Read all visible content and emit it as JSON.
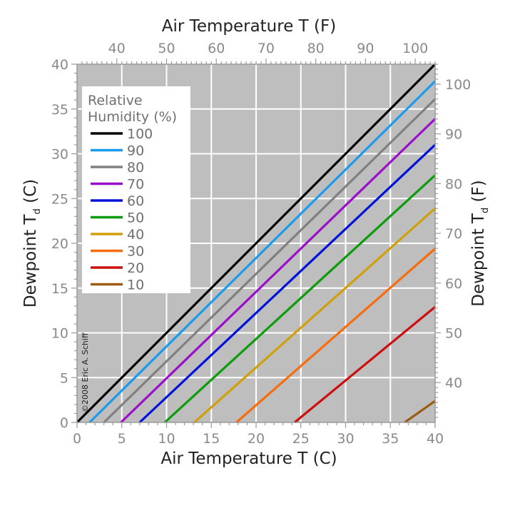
{
  "chart_data": {
    "type": "line",
    "title": "",
    "xlabel_bottom": "Air Temperature T (C)",
    "xlabel_top": "Air Temperature T (F)",
    "ylabel_left": "Dewpoint T",
    "ylabel_left_sub": "d",
    "ylabel_left_unit": " (C)",
    "ylabel_right": "Dewpoint T",
    "ylabel_right_sub": "d",
    "ylabel_right_unit": " (F)",
    "xlim": [
      0,
      40
    ],
    "ylim": [
      0,
      40
    ],
    "x_ticks": [
      0,
      5,
      10,
      15,
      20,
      25,
      30,
      35,
      40
    ],
    "y_ticks": [
      0,
      5,
      10,
      15,
      20,
      25,
      30,
      35,
      40
    ],
    "top_ticks_F": [
      40,
      50,
      60,
      70,
      80,
      90,
      100
    ],
    "right_ticks_F": [
      40,
      50,
      60,
      70,
      80,
      90,
      100
    ],
    "grid": true,
    "plot_background": "#bebebe",
    "grid_color": "#ffffff",
    "legend": {
      "title": "Relative Humidity (%)",
      "title_lines": [
        "Relative",
        "Humidity (%)"
      ],
      "placement": "top-left"
    },
    "annotation": "©2008 Eric A. Schiff",
    "series": [
      {
        "name": "100",
        "rh": 100,
        "color": "#000000",
        "x": [
          0,
          40
        ],
        "y": [
          0,
          40
        ]
      },
      {
        "name": "90",
        "rh": 90,
        "color": "#1a9bec",
        "x": [
          1.4,
          40
        ],
        "y": [
          0,
          38.1
        ]
      },
      {
        "name": "80",
        "rh": 80,
        "color": "#808080",
        "x": [
          3.0,
          40
        ],
        "y": [
          0,
          36.1
        ]
      },
      {
        "name": "70",
        "rh": 70,
        "color": "#9b0fcb",
        "x": [
          4.9,
          40
        ],
        "y": [
          0,
          33.9
        ]
      },
      {
        "name": "60",
        "rh": 60,
        "color": "#0011dd",
        "x": [
          7.0,
          40
        ],
        "y": [
          0,
          31.0
        ]
      },
      {
        "name": "50",
        "rh": 50,
        "color": "#0c9c0c",
        "x": [
          9.8,
          40
        ],
        "y": [
          0,
          27.6
        ]
      },
      {
        "name": "40",
        "rh": 40,
        "color": "#d0a00c",
        "x": [
          13.1,
          40
        ],
        "y": [
          0,
          23.9
        ]
      },
      {
        "name": "30",
        "rh": 30,
        "color": "#f76d0e",
        "x": [
          17.8,
          40
        ],
        "y": [
          0,
          19.4
        ]
      },
      {
        "name": "20",
        "rh": 20,
        "color": "#cc0f0f",
        "x": [
          24.3,
          40
        ],
        "y": [
          0,
          12.9
        ]
      },
      {
        "name": "10",
        "rh": 10,
        "color": "#9b5b10",
        "x": [
          36.6,
          40
        ],
        "y": [
          0,
          2.4
        ]
      }
    ]
  }
}
